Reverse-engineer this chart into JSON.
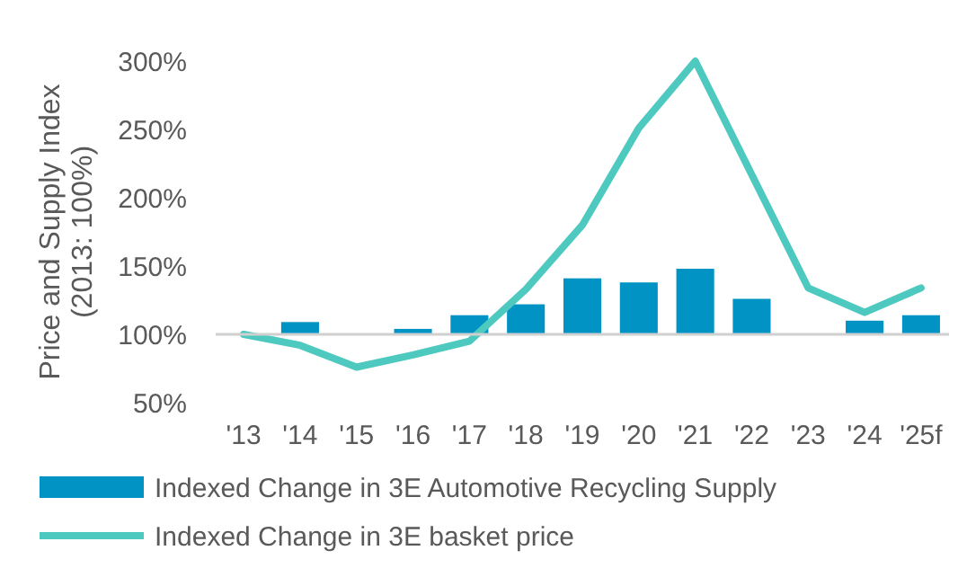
{
  "chart_data": {
    "type": "bar",
    "ylabel": "Price and Supply Index\n(2013: 100%)",
    "categories": [
      "'13",
      "'14",
      "'15",
      "'16",
      "'17",
      "'18",
      "'19",
      "'20",
      "'21",
      "'22",
      "'23",
      "'24",
      "'25f"
    ],
    "series": [
      {
        "name": "Indexed Change in 3E Automotive Recycling Supply",
        "color": "#0093c4",
        "base": [
          null,
          100,
          null,
          100,
          100,
          100,
          100,
          100,
          100,
          100,
          null,
          100,
          100
        ],
        "values": [
          null,
          9,
          null,
          4,
          14,
          22,
          41,
          38,
          48,
          26,
          null,
          10,
          14
        ]
      },
      {
        "name": "Indexed Change in 3E basket price",
        "type": "line",
        "color": "#4ec9c0",
        "values": [
          100,
          92,
          76,
          85,
          95,
          133,
          180,
          251,
          300,
          217,
          134,
          116,
          134
        ]
      }
    ],
    "ylim": [
      50,
      300
    ],
    "yticks": [
      {
        "value": 50,
        "label": "50%"
      },
      {
        "value": 100,
        "label": "100%"
      },
      {
        "value": 150,
        "label": "150%"
      },
      {
        "value": 200,
        "label": "200%"
      },
      {
        "value": 250,
        "label": "250%"
      },
      {
        "value": 300,
        "label": "300%"
      }
    ],
    "ref_lines": [
      {
        "axis": "y",
        "value": 100,
        "color": "#d0d0d0"
      }
    ],
    "grid": false,
    "legend": "bottom",
    "marker": "none",
    "line_style": "solid"
  }
}
